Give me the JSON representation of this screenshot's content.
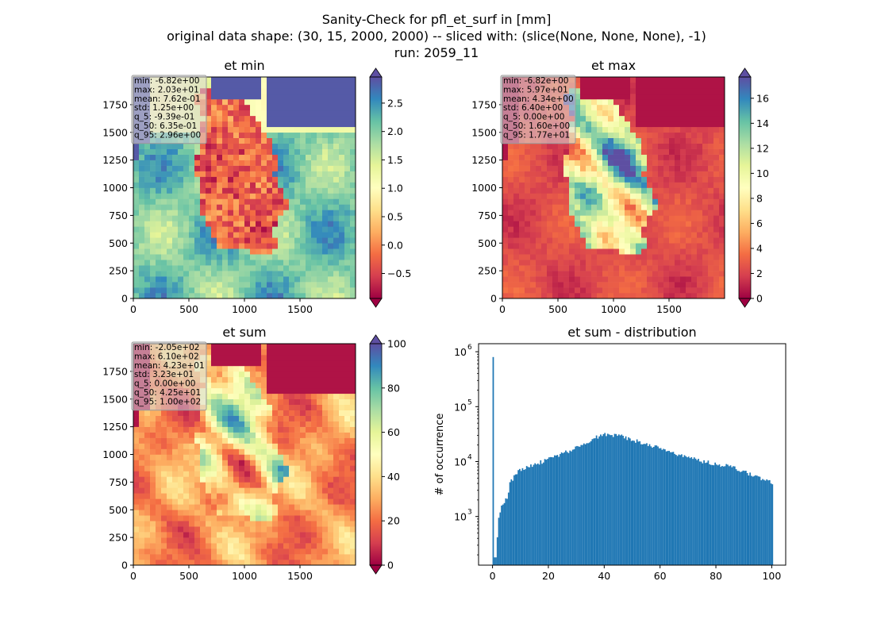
{
  "figure": {
    "title_lines": [
      "Sanity-Check for pfl_et_surf in [mm]",
      "original data shape: (30, 15, 2000, 2000) -- sliced with: (slice(None, None, None), -1)",
      "run: 2059_11"
    ]
  },
  "chart_data": [
    {
      "type": "heatmap",
      "title": "et min",
      "xlim": [
        0,
        2000
      ],
      "ylim": [
        0,
        2000
      ],
      "xticks": [
        0,
        500,
        1000,
        1500
      ],
      "yticks": [
        0,
        250,
        500,
        750,
        1000,
        1250,
        1500,
        1750
      ],
      "colormap": "Spectral",
      "colorbar": {
        "range": [
          -0.94,
          2.96
        ],
        "ticks": [
          -0.5,
          0.0,
          0.5,
          1.0,
          1.5,
          2.0,
          2.5
        ],
        "tick_labels": [
          "−0.5",
          "0.0",
          "0.5",
          "1.0",
          "1.5",
          "2.0",
          "2.5"
        ],
        "extend": "both"
      },
      "stats": [
        "min: -6.82e+00",
        "max: 2.03e+01",
        "mean: 7.62e-01",
        "std: 1.25e+00",
        "q_5: -9.39e-01",
        "q_50: 6.35e-01",
        "q_95: 2.96e+00"
      ]
    },
    {
      "type": "heatmap",
      "title": "et max",
      "xlim": [
        0,
        2000
      ],
      "ylim": [
        0,
        2000
      ],
      "xticks": [
        0,
        500,
        1000,
        1500
      ],
      "yticks": [
        0,
        250,
        500,
        750,
        1000,
        1250,
        1500,
        1750
      ],
      "colormap": "Spectral",
      "colorbar": {
        "range": [
          0,
          17.7
        ],
        "ticks": [
          0,
          2,
          4,
          6,
          8,
          10,
          12,
          14,
          16
        ],
        "tick_labels": [
          "0",
          "2",
          "4",
          "6",
          "8",
          "10",
          "12",
          "14",
          "16"
        ],
        "extend": "both"
      },
      "stats": [
        "min: -6.82e+00",
        "max: 5.97e+01",
        "mean: 4.34e+00",
        "std: 6.40e+00",
        "q_5: 0.00e+00",
        "q_50: 1.60e+00",
        "q_95: 1.77e+01"
      ]
    },
    {
      "type": "heatmap",
      "title": "et sum",
      "xlim": [
        0,
        2000
      ],
      "ylim": [
        0,
        2000
      ],
      "xticks": [
        0,
        500,
        1000,
        1500
      ],
      "yticks": [
        0,
        250,
        500,
        750,
        1000,
        1250,
        1500,
        1750
      ],
      "colormap": "Spectral",
      "colorbar": {
        "range": [
          0,
          100
        ],
        "ticks": [
          0,
          20,
          40,
          60,
          80,
          100
        ],
        "tick_labels": [
          "0",
          "20",
          "40",
          "60",
          "80",
          "100"
        ],
        "extend": "both"
      },
      "stats": [
        "min: -2.05e+02",
        "max: 6.10e+02",
        "mean: 4.23e+01",
        "std: 3.23e+01",
        "q_5: 0.00e+00",
        "q_50: 4.25e+01",
        "q_95: 1.00e+02"
      ]
    },
    {
      "type": "bar",
      "title": "et sum - distribution",
      "ylabel": "# of occurrence",
      "xlabel": "",
      "yscale": "log",
      "xlim": [
        -5,
        105
      ],
      "ylim": [
        130,
        1400000
      ],
      "xticks": [
        0,
        20,
        40,
        60,
        80,
        100
      ],
      "yticks": [
        1000,
        10000,
        100000,
        1000000
      ],
      "ytick_bases": [
        "10",
        "10",
        "10",
        "10"
      ],
      "ytick_exps": [
        "3",
        "4",
        "5",
        "6"
      ],
      "bin_width": 0.5,
      "bar_color": "#1f77b4",
      "x": [
        0,
        1,
        2,
        3,
        4,
        5,
        6,
        8,
        10,
        12,
        15,
        20,
        25,
        30,
        35,
        40,
        45,
        50,
        55,
        60,
        65,
        70,
        75,
        80,
        85,
        90,
        95,
        100
      ],
      "values": [
        800000,
        180,
        1000,
        1600,
        1900,
        2200,
        4000,
        6000,
        7000,
        8000,
        9000,
        11000,
        14000,
        18000,
        25000,
        32000,
        30000,
        25000,
        21000,
        17000,
        14000,
        12000,
        10000,
        9000,
        8000,
        6500,
        5000,
        4200
      ]
    }
  ]
}
